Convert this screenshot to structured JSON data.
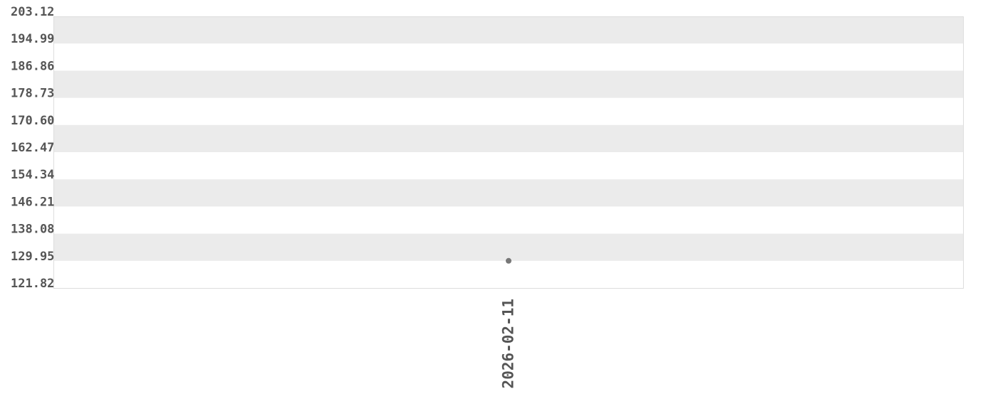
{
  "chart_data": {
    "type": "scatter",
    "title": "",
    "xlabel": "",
    "ylabel": "",
    "x_categories": [
      "2026-02-11"
    ],
    "y_ticks": [
      "121.82",
      "129.95",
      "138.08",
      "146.21",
      "154.34",
      "162.47",
      "170.60",
      "178.73",
      "186.86",
      "194.99",
      "203.12"
    ],
    "ylim": [
      121.82,
      203.12
    ],
    "series": [
      {
        "points": [
          {
            "x": "2026-02-11",
            "y": 129.95
          }
        ]
      }
    ],
    "grid": "alternating horizontal bands",
    "colors": {
      "band": "#ebebeb",
      "point": "#777777",
      "text": "#555555",
      "border": "#dddddd"
    }
  }
}
